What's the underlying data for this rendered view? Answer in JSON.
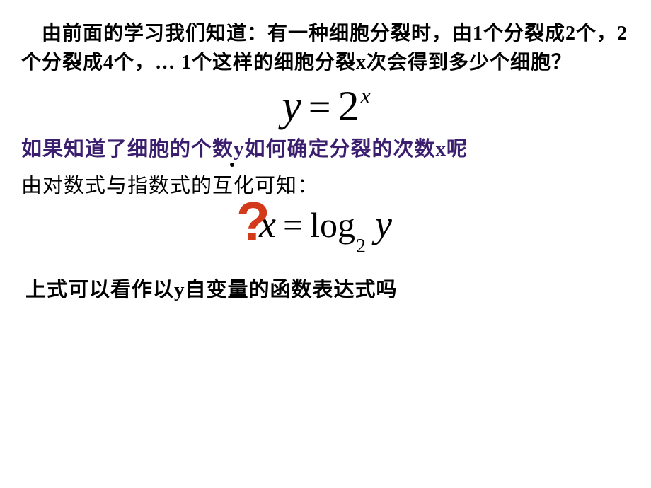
{
  "slide": {
    "background_color": "#ffffff",
    "para1": {
      "text": "　由前面的学习我们知道：有一种细胞分裂时，由1个分裂成2个，2个分裂成4个，… 1个这样的细胞分裂x次会得到多少个细胞？",
      "color": "#000000",
      "fontsize": 28,
      "fontweight": "bold"
    },
    "formula1": {
      "y": "y",
      "eq": "=",
      "base": "2",
      "exp": "x",
      "fontsize_main": 62,
      "fontsize_exp": 32,
      "color": "#000000",
      "font_family": "Times New Roman"
    },
    "para2": {
      "text": "如果知道了细胞的个数y如何确定分裂的次数x呢",
      "color": "#3b1e6e",
      "fontsize": 29,
      "fontweight": "bold"
    },
    "para3": {
      "text": "由对数式与指数式的互化可知：",
      "color": "#000000",
      "fontsize": 29
    },
    "question_mark": {
      "glyph": "?",
      "color": "#d23a1a",
      "fontsize": 78,
      "fontweight": "bold"
    },
    "formula2": {
      "x": "x",
      "eq": "=",
      "logword": "log",
      "sub": "2",
      "y": "y",
      "fontsize_main": 54,
      "fontsize_sub": 28,
      "color": "#000000",
      "font_family": "Times New Roman"
    },
    "para4": {
      "text": "上式可以看作以y自变量的函数表达式吗",
      "color": "#000000",
      "fontsize": 29,
      "fontweight": "bold"
    }
  }
}
